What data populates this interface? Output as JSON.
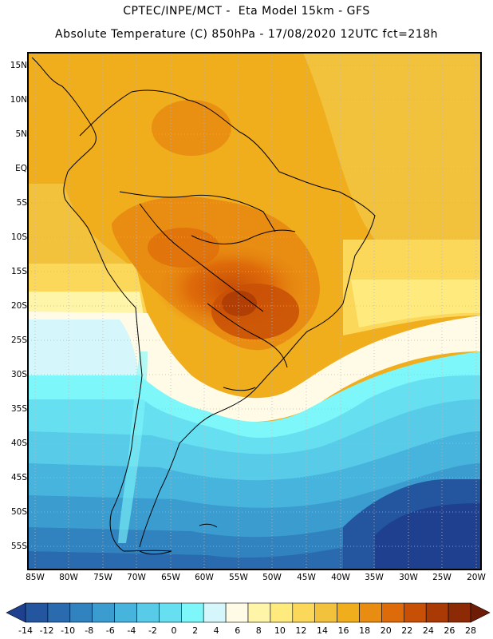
{
  "header": {
    "line1": "CPTEC/INPE/MCT -  Eta Model 15km - GFS",
    "line2": "Absolute Temperature (C) 850hPa - 17/08/2020 12UTC fct=218h"
  },
  "map": {
    "lat_labels": [
      "15N",
      "10N",
      "5N",
      "EQ",
      "5S",
      "10S",
      "15S",
      "20S",
      "25S",
      "30S",
      "35S",
      "40S",
      "45S",
      "50S",
      "55S"
    ],
    "lon_labels": [
      "85W",
      "80W",
      "75W",
      "70W",
      "65W",
      "60W",
      "55W",
      "50W",
      "45W",
      "40W",
      "35W",
      "30W",
      "25W",
      "20W"
    ],
    "grid": "dotted",
    "region": "South America"
  },
  "colorbar": {
    "values": [
      "-14",
      "-12",
      "-10",
      "-8",
      "-6",
      "-4",
      "-2",
      "0",
      "2",
      "4",
      "6",
      "8",
      "10",
      "12",
      "14",
      "16",
      "18",
      "20",
      "22",
      "24",
      "26",
      "28"
    ],
    "colors": [
      "#1f3f8f",
      "#24559f",
      "#2a6aaf",
      "#3083bf",
      "#3b9dcf",
      "#47b4dd",
      "#57cbe8",
      "#66dff1",
      "#7ef7fb",
      "#d5f7fb",
      "#fffbe6",
      "#fff5a8",
      "#ffeb7d",
      "#fbd75a",
      "#f3c23c",
      "#f0ad1c",
      "#e88c12",
      "#de6b0a",
      "#c84f06",
      "#a93a05",
      "#8c2a05",
      "#6e1c05"
    ]
  }
}
